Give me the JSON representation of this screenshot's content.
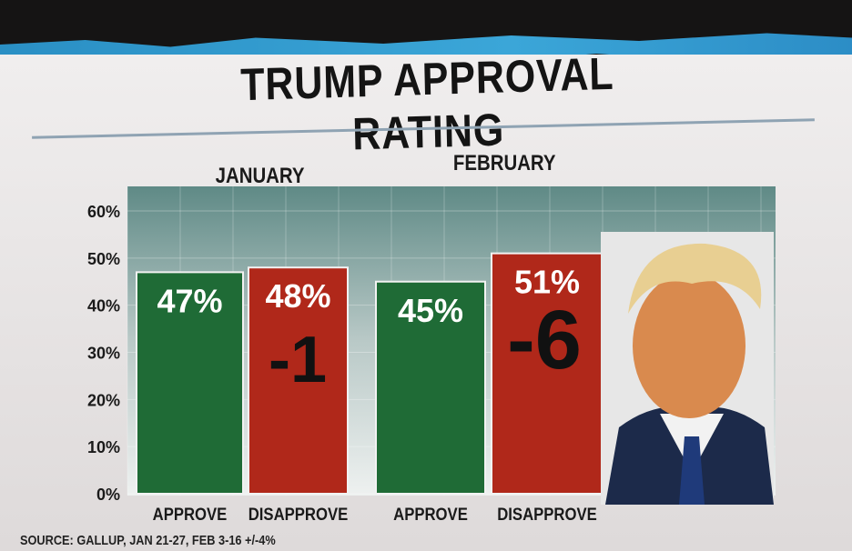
{
  "chart_data": {
    "type": "bar",
    "title": "TRUMP APPROVAL RATING",
    "groups": [
      "JANUARY",
      "FEBRUARY"
    ],
    "categories": [
      "APPROVE",
      "DISAPPROVE",
      "APPROVE",
      "DISAPPROVE"
    ],
    "values": [
      47,
      48,
      45,
      51
    ],
    "value_labels": [
      "47%",
      "48%",
      "45%",
      "51%"
    ],
    "net_labels": [
      "-1",
      "-6"
    ],
    "yticks": [
      "0%",
      "10%",
      "20%",
      "30%",
      "40%",
      "50%",
      "60%"
    ],
    "ylim": [
      0,
      60
    ],
    "colors": {
      "approve": "#1f6b36",
      "disapprove": "#b0281a"
    },
    "source": "SOURCE: GALLUP, JAN 21-27, FEB 3-16  +/-4%"
  }
}
